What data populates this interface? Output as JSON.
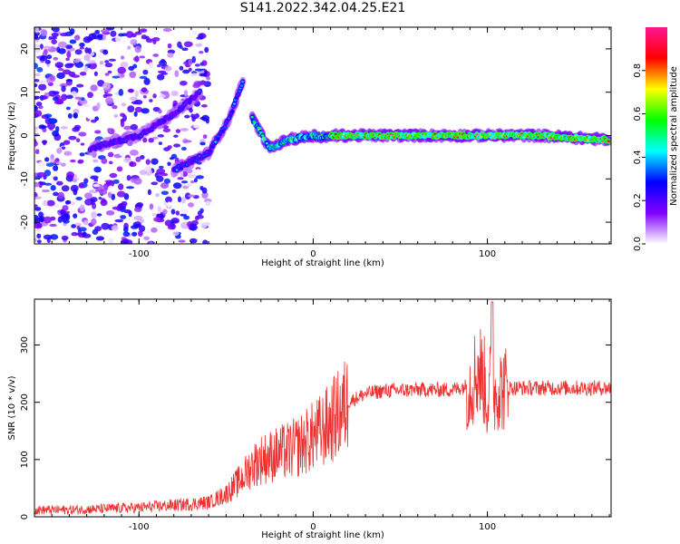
{
  "title": "S141.2022.342.04.25.E21",
  "colors": {
    "snr_line": "#ee3030",
    "plot_background": "#ffffff",
    "frame": "#000000"
  },
  "chart_data": [
    {
      "type": "heatmap",
      "xlabel": "Height of straight line (km)",
      "ylabel": "Frequency (Hz)",
      "xlim": [
        -160,
        171
      ],
      "ylim": [
        -25,
        25
      ],
      "x_ticks": [
        -100,
        0,
        100
      ],
      "y_ticks": [
        -20,
        -10,
        0,
        10,
        20
      ],
      "grid": false,
      "colorbar": {
        "label": "Normalized spectral amplitude",
        "range": [
          0,
          1
        ],
        "ticks": [
          0.0,
          0.2,
          0.4,
          0.6,
          0.8
        ],
        "colormap": [
          "#ffffff",
          "#8000ff",
          "#0000ff",
          "#00ffff",
          "#00ff00",
          "#ffff00",
          "#ff0000",
          "#ff1493"
        ]
      },
      "features": [
        {
          "x": [
            -128,
            -100,
            -80,
            -65
          ],
          "freq": [
            -3,
            0,
            5,
            10
          ],
          "amplitude": 0.3
        },
        {
          "x": [
            -80,
            -60,
            -48,
            -40
          ],
          "freq": [
            -8,
            -4,
            4,
            13
          ],
          "amplitude": 0.35
        },
        {
          "x": [
            -35,
            -25,
            -15,
            0,
            10
          ],
          "freq": [
            4,
            -3,
            -1,
            0,
            -0.5
          ],
          "amplitude": 0.6
        },
        {
          "x": [
            10,
            60,
            100,
            130,
            170
          ],
          "freq": [
            0,
            0,
            0,
            0,
            -1
          ],
          "amplitude": 0.9
        }
      ]
    },
    {
      "type": "line",
      "xlabel": "Height of straight line (km)",
      "ylabel": "SNR (10 * v/v)",
      "xlim": [
        -160,
        171
      ],
      "ylim": [
        0,
        380
      ],
      "x_ticks": [
        -100,
        0,
        100
      ],
      "y_ticks": [
        0,
        100,
        200,
        300
      ],
      "grid": false,
      "series": [
        {
          "x": [
            -160,
            -140,
            -120,
            -100,
            -80,
            -60,
            -50,
            -40,
            -35,
            -30,
            -25,
            -20,
            -15,
            -10,
            -5,
            0,
            5,
            10,
            15,
            20,
            30,
            40,
            60,
            80,
            90,
            95,
            98,
            100,
            102,
            104,
            106,
            108,
            110,
            120,
            140,
            160,
            171
          ],
          "y": [
            12,
            12,
            14,
            16,
            20,
            25,
            40,
            70,
            90,
            100,
            105,
            110,
            115,
            120,
            130,
            140,
            150,
            165,
            180,
            200,
            215,
            220,
            222,
            222,
            230,
            260,
            240,
            200,
            235,
            210,
            230,
            222,
            225,
            225,
            225,
            225,
            225
          ]
        }
      ]
    }
  ]
}
